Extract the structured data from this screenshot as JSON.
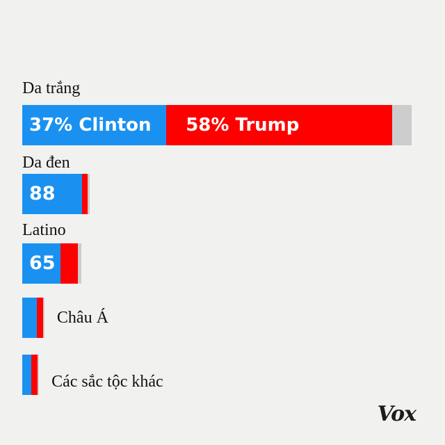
{
  "chart_data": {
    "type": "bar",
    "orientation": "horizontal",
    "stacked": true,
    "groups": [
      {
        "label": "Da trắng",
        "clinton": 37,
        "trump": 58,
        "other": 5,
        "data_label_clinton": "37% Clinton",
        "data_label_trump": "58% Trump",
        "label_position": "above"
      },
      {
        "label": "Da đen",
        "clinton": 88,
        "trump": 8,
        "other": 4,
        "data_label_clinton": "88",
        "label_position": "above"
      },
      {
        "label": "Latino",
        "clinton": 65,
        "trump": 29,
        "other": 6,
        "data_label_clinton": "65",
        "label_position": "above"
      },
      {
        "label": "Châu Á",
        "clinton": 65,
        "trump": 29,
        "other": 6,
        "label_position": "right"
      },
      {
        "label": "Các sắc tộc khác",
        "clinton": 56,
        "trump": 37,
        "other": 7,
        "label_position": "right"
      }
    ],
    "colors": {
      "clinton": "#1a91f0",
      "trump": "#ff0000",
      "other": "#cccccc"
    }
  },
  "brand": "Vox"
}
